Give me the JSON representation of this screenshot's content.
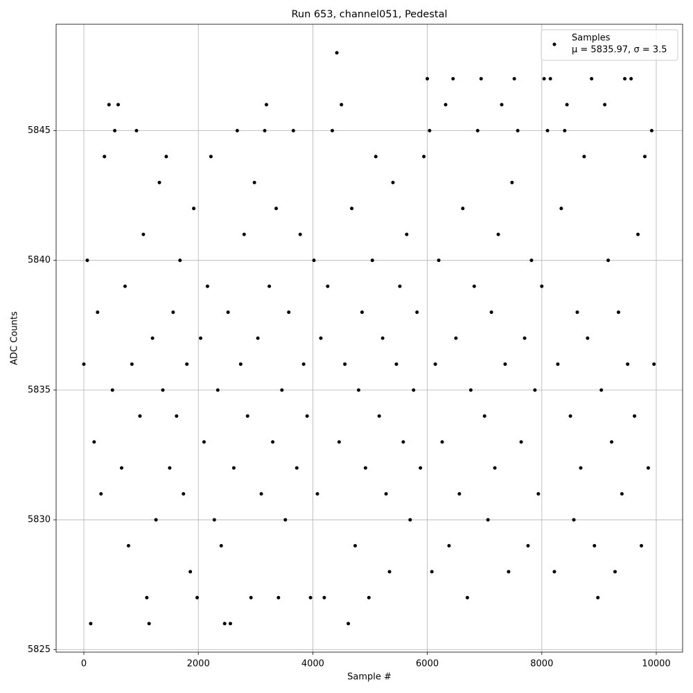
{
  "chart_data": {
    "type": "scatter",
    "title": "Run 653, channel051, Pedestal",
    "xlabel": "Sample #",
    "ylabel": "ADC Counts",
    "xlim": [
      -484,
      10460
    ],
    "xticks": [
      0,
      2000,
      4000,
      6000,
      8000,
      10000
    ],
    "ylim": [
      5824.9,
      5849.1
    ],
    "yticks": [
      5825,
      5830,
      5835,
      5840,
      5845
    ],
    "grid": true,
    "legend": "upper right",
    "annotation": "μ = 5835.97, σ = 3.5",
    "x": [
      0,
      60,
      120,
      180,
      240,
      300,
      360,
      440,
      500,
      540,
      600,
      660,
      720,
      780,
      840,
      920,
      980,
      1040,
      1100,
      1140,
      1200,
      1260,
      1320,
      1380,
      1440,
      1500,
      1560,
      1620,
      1680,
      1740,
      1800,
      1860,
      1920,
      1980,
      2040,
      2100,
      2160,
      2220,
      2280,
      2340,
      2400,
      2460,
      2520,
      2560,
      2620,
      2680,
      2740,
      2800,
      2860,
      2920,
      2980,
      3040,
      3100,
      3160,
      3190,
      3240,
      3300,
      3360,
      3400,
      3460,
      3520,
      3580,
      3660,
      3720,
      3780,
      3840,
      3900,
      3960,
      4020,
      4080,
      4140,
      4200,
      4260,
      4340,
      4420,
      4460,
      4500,
      4560,
      4620,
      4680,
      4740,
      4800,
      4860,
      4920,
      4980,
      5040,
      5100,
      5160,
      5220,
      5280,
      5340,
      5400,
      5460,
      5520,
      5580,
      5640,
      5700,
      5760,
      5820,
      5880,
      5940,
      6000,
      6040,
      6080,
      6140,
      6200,
      6260,
      6320,
      6380,
      6450,
      6500,
      6560,
      6620,
      6700,
      6760,
      6820,
      6880,
      6940,
      7000,
      7060,
      7120,
      7180,
      7240,
      7300,
      7360,
      7420,
      7480,
      7520,
      7580,
      7640,
      7700,
      7760,
      7820,
      7880,
      7940,
      8000,
      8040,
      8100,
      8150,
      8220,
      8280,
      8340,
      8400,
      8440,
      8500,
      8560,
      8620,
      8680,
      8740,
      8800,
      8870,
      8920,
      8980,
      9040,
      9100,
      9160,
      9220,
      9280,
      9340,
      9400,
      9450,
      9500,
      9560,
      9620,
      9680,
      9740,
      9800,
      9860,
      9920,
      9960
    ],
    "series": [
      {
        "name": "Samples",
        "color": "#000000",
        "values": [
          5836,
          5840,
          5826,
          5833,
          5838,
          5831,
          5844,
          5846,
          5835,
          5845,
          5846,
          5832,
          5839,
          5829,
          5836,
          5845,
          5834,
          5841,
          5827,
          5826,
          5837,
          5830,
          5843,
          5835,
          5844,
          5832,
          5838,
          5834,
          5840,
          5831,
          5836,
          5828,
          5842,
          5827,
          5837,
          5833,
          5839,
          5844,
          5830,
          5835,
          5829,
          5826,
          5838,
          5826,
          5832,
          5845,
          5836,
          5841,
          5834,
          5827,
          5843,
          5837,
          5831,
          5845,
          5846,
          5839,
          5833,
          5842,
          5827,
          5835,
          5830,
          5838,
          5845,
          5832,
          5841,
          5836,
          5834,
          5827,
          5840,
          5831,
          5837,
          5827,
          5839,
          5845,
          5848,
          5833,
          5846,
          5836,
          5826,
          5842,
          5829,
          5835,
          5838,
          5832,
          5827,
          5840,
          5844,
          5834,
          5837,
          5831,
          5828,
          5843,
          5836,
          5839,
          5833,
          5841,
          5830,
          5835,
          5838,
          5832,
          5844,
          5847,
          5845,
          5828,
          5836,
          5840,
          5833,
          5846,
          5829,
          5847,
          5837,
          5831,
          5842,
          5827,
          5835,
          5839,
          5845,
          5847,
          5834,
          5830,
          5838,
          5832,
          5841,
          5846,
          5836,
          5828,
          5843,
          5847,
          5845,
          5833,
          5837,
          5829,
          5840,
          5835,
          5831,
          5839,
          5847,
          5845,
          5847,
          5828,
          5836,
          5842,
          5845,
          5846,
          5834,
          5830,
          5838,
          5832,
          5844,
          5837,
          5847,
          5829,
          5827,
          5835,
          5846,
          5840,
          5833,
          5828,
          5838,
          5831,
          5847,
          5836,
          5847,
          5834,
          5841,
          5829,
          5844,
          5832,
          5845,
          5836
        ]
      }
    ]
  }
}
